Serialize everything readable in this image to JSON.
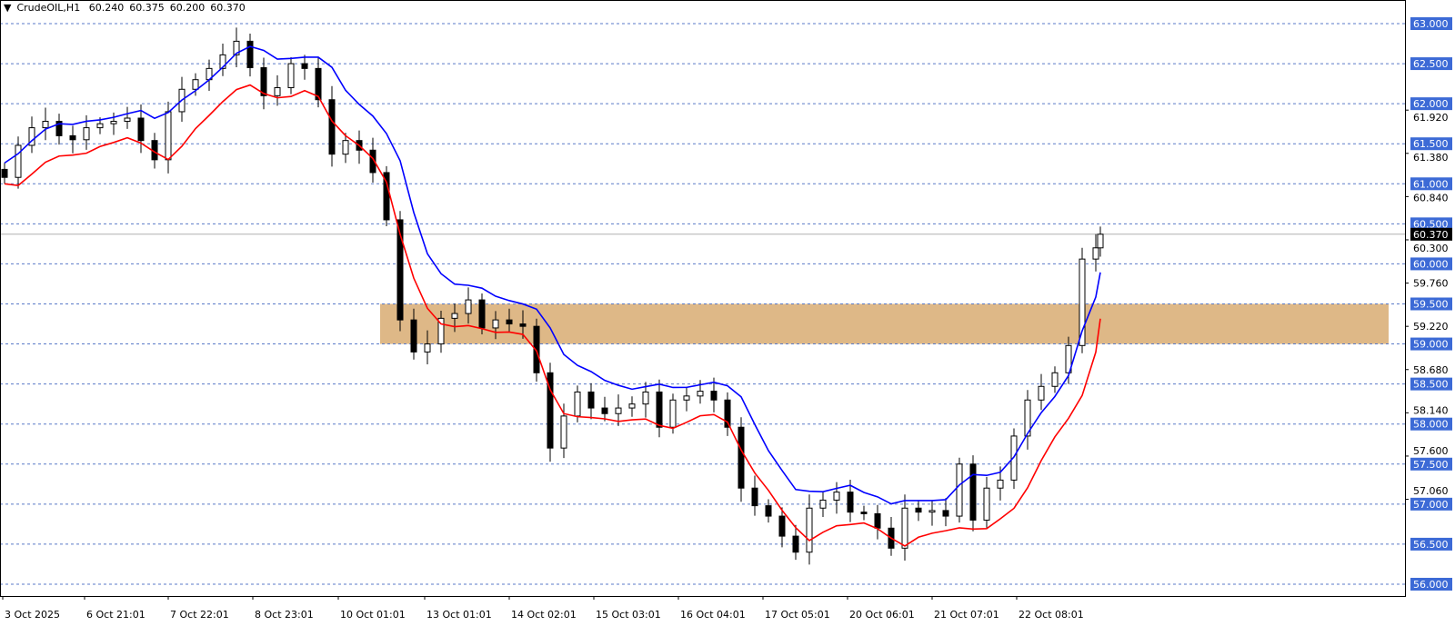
{
  "header": {
    "symbol": "CrudeOIL,H1",
    "open": "60.240",
    "high": "60.375",
    "low": "60.200",
    "close": "60.370"
  },
  "colors": {
    "bull": "#000000",
    "bear": "#000000",
    "ma_fast": "#0000ff",
    "ma_slow": "#ff0000",
    "zone": "#deb887",
    "level_label_bg": "#3c6ad6",
    "grid": "#5a7ac8"
  },
  "chart_data": {
    "type": "candlestick",
    "title": "CrudeOIL,H1",
    "ylim": [
      56.0,
      63.0
    ],
    "levels": [
      "63.000",
      "62.500",
      "62.000",
      "61.500",
      "61.000",
      "60.500",
      "60.000",
      "59.500",
      "59.000",
      "58.500",
      "58.000",
      "57.500",
      "57.000",
      "56.500",
      "56.000"
    ],
    "axis_ticks": [
      "61.920",
      "61.380",
      "60.840",
      "60.300",
      "59.760",
      "59.220",
      "58.680",
      "58.140",
      "57.600",
      "57.060"
    ],
    "current_price": "60.370",
    "zone": {
      "from": 59.0,
      "to": 59.5
    },
    "x_labels": [
      "3 Oct 2025",
      "6 Oct 21:01",
      "7 Oct 22:01",
      "8 Oct 23:01",
      "10 Oct 01:01",
      "13 Oct 01:01",
      "14 Oct 02:01",
      "15 Oct 03:01",
      "16 Oct 04:01",
      "17 Oct 05:01",
      "20 Oct 06:01",
      "21 Oct 07:01",
      "22 Oct 08:01"
    ],
    "closes": [
      61.08,
      61.48,
      61.7,
      61.78,
      61.6,
      61.55,
      61.7,
      61.75,
      61.78,
      61.82,
      61.54,
      61.3,
      61.9,
      62.18,
      62.3,
      62.44,
      62.61,
      62.78,
      62.45,
      62.1,
      62.2,
      62.5,
      62.44,
      62.05,
      61.37,
      61.54,
      61.42,
      61.14,
      60.55,
      59.3,
      58.9,
      59.0,
      59.32,
      59.38,
      59.55,
      59.2,
      59.3,
      59.25,
      59.22,
      58.64,
      57.7,
      58.1,
      58.4,
      58.2,
      58.13,
      58.2,
      58.25,
      58.4,
      57.96,
      58.3,
      58.35,
      58.41,
      58.3,
      57.96,
      57.2,
      56.98,
      56.85,
      56.6,
      56.4,
      56.95,
      57.05,
      57.15,
      56.9,
      56.88,
      56.7,
      56.45,
      56.95,
      56.9,
      56.92,
      56.85,
      57.5,
      56.8,
      57.2,
      57.3,
      57.85,
      58.3,
      58.47,
      58.64,
      58.98,
      60.06,
      60.2,
      60.37
    ],
    "series": [
      {
        "values_from": "closes"
      }
    ]
  }
}
